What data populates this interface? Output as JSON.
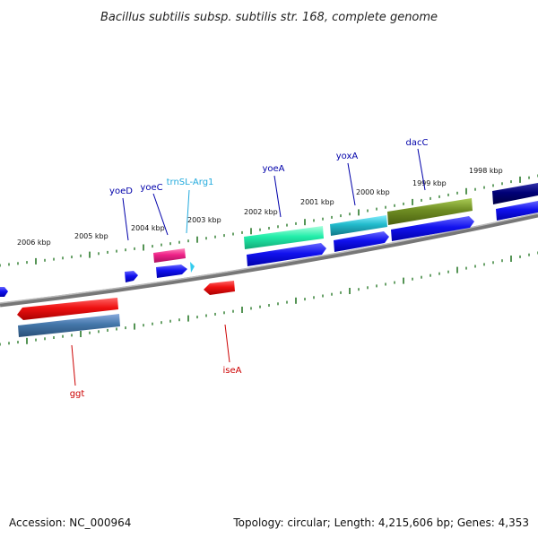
{
  "title": "Bacillus subtilis subsp. subtilis str. 168, complete genome",
  "footer": {
    "accession": "Accession: NC_000964",
    "summary": "Topology: circular; Length: 4,215,606 bp; Genes: 4,353"
  },
  "scale_labels": [
    "2006 kbp",
    "2005 kbp",
    "2004 kbp",
    "2003 kbp",
    "2002 kbp",
    "2001 kbp",
    "2000 kbp",
    "1999 kbp",
    "1998 kbp"
  ],
  "gene_labels": [
    {
      "id": "ggt",
      "text": "ggt",
      "color": "#cc0000"
    },
    {
      "id": "iseA",
      "text": "iseA",
      "color": "#cc0000"
    },
    {
      "id": "yoeD",
      "text": "yoeD",
      "color": "#0000aa"
    },
    {
      "id": "yoeC",
      "text": "yoeC",
      "color": "#0000aa"
    },
    {
      "id": "trnSL-Arg1",
      "text": "trnSL-Arg1",
      "color": "#22aadd"
    },
    {
      "id": "yoeA",
      "text": "yoeA",
      "color": "#0000aa"
    },
    {
      "id": "yoxA",
      "text": "yoxA",
      "color": "#0000aa"
    },
    {
      "id": "dacC",
      "text": "dacC",
      "color": "#0000aa"
    }
  ],
  "colors": {
    "backbone": "#888888",
    "ticks": "#2a7a2a",
    "cds": "#1111ee",
    "gene_red": "#ee1111",
    "steelblue": "#4477aa",
    "magenta": "#ee2288",
    "mint": "#22eeaa",
    "cyan": "#22bbcc",
    "olive": "#6e8c22",
    "navy": "#000077"
  }
}
